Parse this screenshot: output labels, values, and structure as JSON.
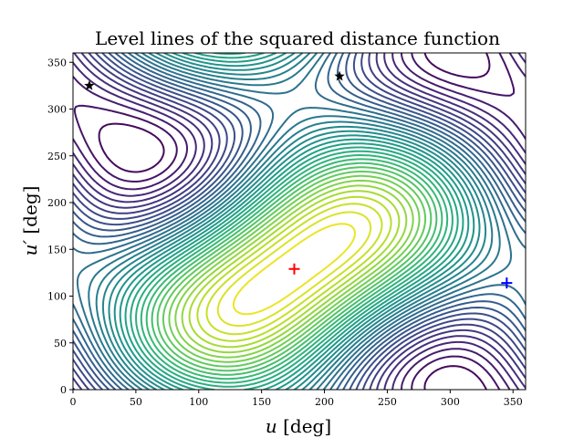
{
  "chart_data": {
    "type": "contour",
    "title": "Level lines of the squared distance function",
    "xlabel_var": "u",
    "xlabel_unit": "[deg]",
    "ylabel_var": "u′",
    "ylabel_unit": "[deg]",
    "xlim": [
      0,
      360
    ],
    "ylim": [
      0,
      360
    ],
    "xticks": [
      0,
      50,
      100,
      150,
      200,
      250,
      300,
      350
    ],
    "yticks": [
      0,
      50,
      100,
      150,
      200,
      250,
      300,
      350
    ],
    "colormap": "viridis",
    "grid": false,
    "markers": [
      {
        "name": "red-plus",
        "symbol": "plus",
        "color": "#ff0000",
        "x": 176,
        "y": 129
      },
      {
        "name": "blue-plus",
        "symbol": "plus",
        "color": "#0000ff",
        "x": 345,
        "y": 114
      },
      {
        "name": "star-1",
        "symbol": "star",
        "color": "#000000",
        "x": 13,
        "y": 325
      },
      {
        "name": "star-2",
        "symbol": "star",
        "color": "#000000",
        "x": 212,
        "y": 335
      }
    ]
  }
}
